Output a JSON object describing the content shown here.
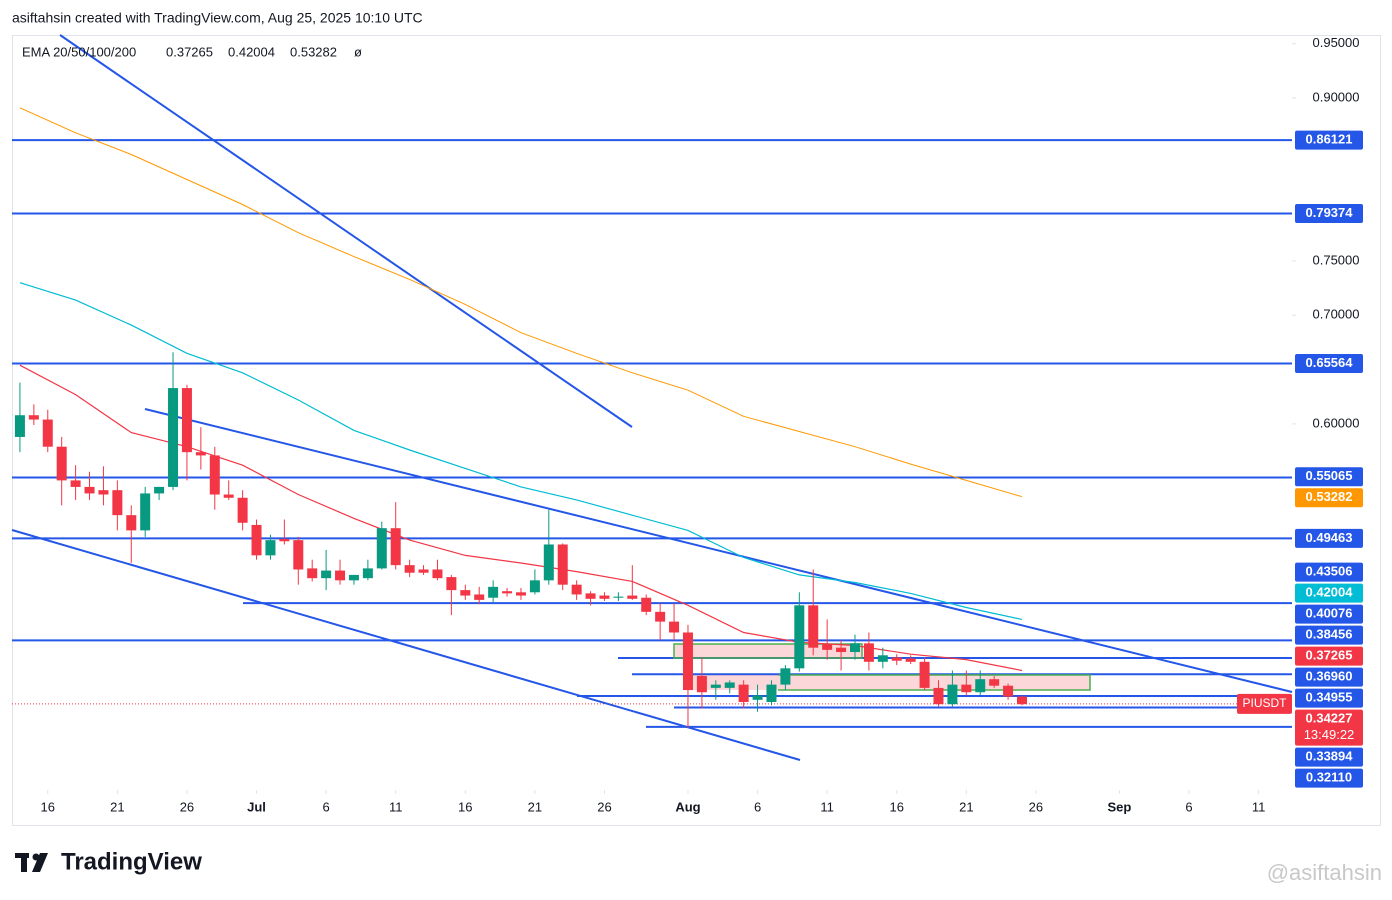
{
  "header": {
    "title": "asiftahsin created with TradingView.com, Aug 25, 2025 10:10 UTC"
  },
  "chart_data": {
    "type": "candlestick",
    "symbol": "PIUSDT",
    "indicator": {
      "label": "EMA 20/50/100/200",
      "values": [
        0.37265,
        0.42004,
        0.53282
      ],
      "empty": "ø"
    },
    "colors": {
      "up": "#089981",
      "down": "#f23645",
      "level": "#2456e8"
    },
    "x": [
      0,
      1,
      2,
      3,
      4,
      5,
      6,
      7,
      8,
      9,
      10,
      11,
      12,
      13,
      14,
      15,
      16,
      17,
      18,
      19,
      20,
      21,
      22,
      23,
      24,
      25,
      26,
      27,
      28,
      29,
      30,
      31,
      32,
      33,
      34,
      35,
      36,
      37,
      38,
      39,
      40,
      41,
      42,
      43,
      44,
      45,
      46,
      47,
      48,
      49,
      50,
      51,
      52,
      53,
      54,
      55,
      56,
      57,
      58,
      59,
      60,
      61,
      62,
      63,
      64,
      65,
      66,
      67,
      68,
      69,
      70,
      71,
      72
    ],
    "open": [
      0.588,
      0.608,
      0.604,
      0.579,
      0.548,
      0.542,
      0.539,
      0.539,
      0.516,
      0.502,
      0.536,
      0.542,
      0.633,
      0.574,
      0.571,
      0.535,
      0.532,
      0.507,
      0.479,
      0.494,
      0.493,
      0.467,
      0.458,
      0.465,
      0.456,
      0.458,
      0.467,
      0.504,
      0.47,
      0.466,
      0.466,
      0.459,
      0.447,
      0.443,
      0.44,
      0.446,
      0.445,
      0.445,
      0.456,
      0.489,
      0.452,
      0.444,
      0.442,
      0.44,
      0.442,
      0.44,
      0.427,
      0.418,
      0.408,
      0.368,
      0.357,
      0.357,
      0.36,
      0.346,
      0.344,
      0.36,
      0.375,
      0.433,
      0.397,
      0.394,
      0.39,
      0.398,
      0.381,
      0.385,
      0.384,
      0.381,
      0.357,
      0.342,
      0.36,
      0.353,
      0.365,
      0.359,
      0.349
    ],
    "high": [
      0.638,
      0.618,
      0.613,
      0.588,
      0.562,
      0.556,
      0.561,
      0.548,
      0.525,
      0.542,
      0.542,
      0.666,
      0.636,
      0.597,
      0.579,
      0.548,
      0.539,
      0.512,
      0.498,
      0.512,
      0.496,
      0.475,
      0.484,
      0.475,
      0.461,
      0.475,
      0.51,
      0.528,
      0.475,
      0.47,
      0.475,
      0.461,
      0.452,
      0.45,
      0.456,
      0.449,
      0.449,
      0.466,
      0.521,
      0.49,
      0.456,
      0.446,
      0.445,
      0.445,
      0.47,
      0.443,
      0.435,
      0.435,
      0.415,
      0.385,
      0.364,
      0.364,
      0.364,
      0.36,
      0.364,
      0.378,
      0.445,
      0.466,
      0.42,
      0.401,
      0.406,
      0.408,
      0.394,
      0.388,
      0.387,
      0.385,
      0.364,
      0.373,
      0.373,
      0.373,
      0.368,
      0.361,
      0.35
    ],
    "low": [
      0.574,
      0.599,
      0.574,
      0.525,
      0.53,
      0.53,
      0.525,
      0.502,
      0.472,
      0.496,
      0.53,
      0.539,
      0.548,
      0.558,
      0.521,
      0.53,
      0.502,
      0.475,
      0.475,
      0.489,
      0.452,
      0.455,
      0.447,
      0.452,
      0.452,
      0.456,
      0.466,
      0.466,
      0.459,
      0.461,
      0.456,
      0.424,
      0.438,
      0.434,
      0.436,
      0.441,
      0.438,
      0.443,
      0.452,
      0.447,
      0.438,
      0.433,
      0.437,
      0.437,
      0.438,
      0.424,
      0.401,
      0.401,
      0.32,
      0.338,
      0.346,
      0.352,
      0.338,
      0.335,
      0.341,
      0.355,
      0.372,
      0.387,
      0.383,
      0.373,
      0.383,
      0.373,
      0.375,
      0.378,
      0.379,
      0.355,
      0.34,
      0.34,
      0.35,
      0.35,
      0.357,
      0.346,
      0.341
    ],
    "close": [
      0.608,
      0.604,
      0.579,
      0.548,
      0.542,
      0.536,
      0.535,
      0.516,
      0.502,
      0.536,
      0.542,
      0.633,
      0.574,
      0.571,
      0.535,
      0.532,
      0.509,
      0.479,
      0.493,
      0.492,
      0.466,
      0.458,
      0.465,
      0.456,
      0.461,
      0.467,
      0.504,
      0.47,
      0.463,
      0.463,
      0.458,
      0.447,
      0.442,
      0.438,
      0.45,
      0.444,
      0.442,
      0.456,
      0.489,
      0.452,
      0.443,
      0.439,
      0.439,
      0.441,
      0.439,
      0.427,
      0.418,
      0.408,
      0.355,
      0.353,
      0.36,
      0.362,
      0.344,
      0.35,
      0.36,
      0.375,
      0.433,
      0.394,
      0.392,
      0.39,
      0.398,
      0.381,
      0.387,
      0.382,
      0.381,
      0.357,
      0.342,
      0.36,
      0.353,
      0.365,
      0.359,
      0.349,
      0.342
    ],
    "series": [
      {
        "color": "#f23645",
        "x": [
          0,
          4,
          8,
          12,
          16,
          20,
          24,
          28,
          32,
          36,
          40,
          44,
          48,
          52,
          56,
          60,
          64,
          68,
          72
        ],
        "values": [
          0.654,
          0.627,
          0.592,
          0.579,
          0.562,
          0.535,
          0.513,
          0.493,
          0.479,
          0.472,
          0.464,
          0.455,
          0.433,
          0.408,
          0.399,
          0.396,
          0.388,
          0.383,
          0.373
        ]
      },
      {
        "color": "#00bcd4",
        "x": [
          0,
          4,
          8,
          12,
          16,
          20,
          24,
          28,
          32,
          36,
          40,
          44,
          48,
          52,
          56,
          60,
          64,
          68,
          72
        ],
        "values": [
          0.73,
          0.714,
          0.691,
          0.665,
          0.647,
          0.622,
          0.594,
          0.576,
          0.559,
          0.542,
          0.53,
          0.516,
          0.502,
          0.477,
          0.461,
          0.454,
          0.444,
          0.431,
          0.42
        ]
      },
      {
        "color": "#ff9800",
        "x": [
          0,
          4,
          8,
          12,
          16,
          20,
          24,
          28,
          32,
          36,
          40,
          44,
          48,
          52,
          56,
          60,
          64,
          68,
          72
        ],
        "values": [
          0.891,
          0.868,
          0.848,
          0.825,
          0.802,
          0.776,
          0.754,
          0.733,
          0.71,
          0.684,
          0.665,
          0.647,
          0.631,
          0.607,
          0.593,
          0.579,
          0.563,
          0.548,
          0.533
        ]
      }
    ],
    "levels": [
      0.86121,
      0.79374,
      0.65564,
      0.55065,
      0.49463,
      0.43506,
      0.40076,
      0.38456,
      {
        "value": 0.3696,
        "label": "0.36960"
      },
      0.34955,
      0.33894,
      {
        "value": 0.3211,
        "label": "0.32110"
      }
    ],
    "last": {
      "value": 0.34227,
      "countdown": "13:49:22"
    },
    "xlim": [
      -0.57,
      91.4
    ],
    "ylim": [
      0.263,
      0.958
    ],
    "yticks": [
      {
        "value": 0.95,
        "label": "0.95000"
      },
      {
        "value": 0.9,
        "label": "0.90000"
      },
      {
        "value": 0.75,
        "label": "0.75000"
      },
      {
        "value": 0.7,
        "label": "0.70000"
      },
      {
        "value": 0.6,
        "label": "0.60000"
      }
    ],
    "xticks": [
      {
        "value": 2,
        "label": "16"
      },
      {
        "value": 7,
        "label": "21"
      },
      {
        "value": 12,
        "label": "26"
      },
      {
        "value": 17,
        "label": "Jul"
      },
      {
        "value": 22,
        "label": "6"
      },
      {
        "value": 27,
        "label": "11"
      },
      {
        "value": 32,
        "label": "16"
      },
      {
        "value": 37,
        "label": "21"
      },
      {
        "value": 42,
        "label": "26"
      },
      {
        "value": 48,
        "label": "Aug"
      },
      {
        "value": 53,
        "label": "6"
      },
      {
        "value": 58,
        "label": "11"
      },
      {
        "value": 63,
        "label": "16"
      },
      {
        "value": 68,
        "label": "21"
      },
      {
        "value": 73,
        "label": "26"
      },
      {
        "value": 79,
        "label": "Sep"
      },
      {
        "value": 84,
        "label": "6"
      },
      {
        "value": 89,
        "label": "11"
      }
    ],
    "grid": false
  },
  "footer": {
    "logo": "TradingView",
    "watermark": "@asiftahsin"
  }
}
